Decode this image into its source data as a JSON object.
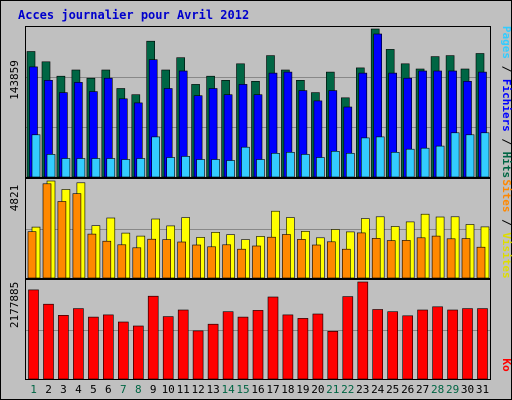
{
  "chart_data": [
    {
      "type": "bar",
      "panel": "top",
      "title": "Acces journalier pour Avril 2012",
      "categories": [
        "1",
        "2",
        "3",
        "4",
        "5",
        "6",
        "7",
        "8",
        "9",
        "10",
        "11",
        "12",
        "13",
        "14",
        "15",
        "16",
        "17",
        "18",
        "19",
        "20",
        "21",
        "22",
        "23",
        "24",
        "25",
        "26",
        "27",
        "28",
        "29",
        "30",
        "31"
      ],
      "weekend_days": [
        "1",
        "7",
        "8",
        "14",
        "15",
        "21",
        "22",
        "28",
        "29"
      ],
      "ymax_label": "143859",
      "ylim": [
        0,
        143859
      ],
      "series": [
        {
          "name": "Pages",
          "color": "#33ccff",
          "values": [
            41000,
            22000,
            18000,
            18000,
            18000,
            18000,
            17000,
            18000,
            39000,
            19000,
            20000,
            17000,
            17000,
            16000,
            29000,
            17000,
            23000,
            24000,
            22000,
            19000,
            25000,
            23000,
            38000,
            39000,
            24000,
            27000,
            28000,
            30000,
            43000,
            41000,
            43000
          ]
        },
        {
          "name": "Fichiers",
          "color": "#0000ff",
          "values": [
            107000,
            94000,
            82000,
            92000,
            83000,
            96000,
            76000,
            72000,
            114000,
            86000,
            103000,
            79000,
            86000,
            80000,
            90000,
            80000,
            101000,
            102000,
            84000,
            74000,
            84000,
            68000,
            101000,
            139000,
            101000,
            96000,
            103000,
            103000,
            103000,
            93000,
            102000
          ]
        },
        {
          "name": "Hits",
          "color": "#006644",
          "values": [
            122000,
            112000,
            98000,
            104000,
            96000,
            104000,
            86000,
            80000,
            132000,
            104000,
            116000,
            90000,
            98000,
            94000,
            110000,
            93000,
            118000,
            104000,
            94000,
            82000,
            102000,
            77000,
            106000,
            143859,
            124000,
            110000,
            105000,
            117000,
            118000,
            105000,
            120000
          ]
        }
      ]
    },
    {
      "type": "bar",
      "panel": "middle",
      "categories": [
        "1",
        "2",
        "3",
        "4",
        "5",
        "6",
        "7",
        "8",
        "9",
        "10",
        "11",
        "12",
        "13",
        "14",
        "15",
        "16",
        "17",
        "18",
        "19",
        "20",
        "21",
        "22",
        "23",
        "24",
        "25",
        "26",
        "27",
        "28",
        "29",
        "30",
        "31"
      ],
      "ymax_label": "4821",
      "ylim": [
        0,
        4821
      ],
      "series": [
        {
          "name": "Sites",
          "color": "#ff8800",
          "values": [
            2300,
            4680,
            3800,
            4190,
            2180,
            1830,
            1650,
            1500,
            1930,
            1910,
            1790,
            1640,
            1550,
            1650,
            1430,
            1590,
            2030,
            2160,
            1920,
            1640,
            1800,
            1430,
            2240,
            1970,
            1860,
            1870,
            2000,
            2080,
            1950,
            1960,
            1530
          ]
        },
        {
          "name": "Visites",
          "color": "#ffff00",
          "values": [
            2530,
            4821,
            4400,
            4730,
            2600,
            2980,
            2230,
            2080,
            2930,
            2590,
            3000,
            2020,
            2270,
            2150,
            1910,
            2070,
            3320,
            3000,
            2320,
            2000,
            2410,
            2290,
            2950,
            3040,
            2560,
            2790,
            3170,
            3030,
            3040,
            2660,
            2540
          ]
        }
      ]
    },
    {
      "type": "bar",
      "panel": "bottom",
      "categories": [
        "1",
        "2",
        "3",
        "4",
        "5",
        "6",
        "7",
        "8",
        "9",
        "10",
        "11",
        "12",
        "13",
        "14",
        "15",
        "16",
        "17",
        "18",
        "19",
        "20",
        "21",
        "22",
        "23",
        "24",
        "25",
        "26",
        "27",
        "28",
        "29",
        "30",
        "31"
      ],
      "ymax_label": "2177885",
      "ylim": [
        0,
        2177885
      ],
      "series": [
        {
          "name": "Ko",
          "color": "#ff0000",
          "values": [
            2000000,
            1680000,
            1430000,
            1580000,
            1390000,
            1440000,
            1280000,
            1190000,
            1860000,
            1400000,
            1550000,
            1080000,
            1230000,
            1510000,
            1390000,
            1540000,
            1840000,
            1440000,
            1360000,
            1460000,
            1070000,
            1850000,
            2177885,
            1560000,
            1510000,
            1420000,
            1550000,
            1620000,
            1550000,
            1580000,
            1580000
          ]
        }
      ]
    }
  ],
  "colors": {
    "background": "#c0c0c0",
    "border": "#000000",
    "gridline": "#888888",
    "bar_outline": "#000000",
    "weekday_label": "#000000",
    "weekend_label": "#006644"
  }
}
